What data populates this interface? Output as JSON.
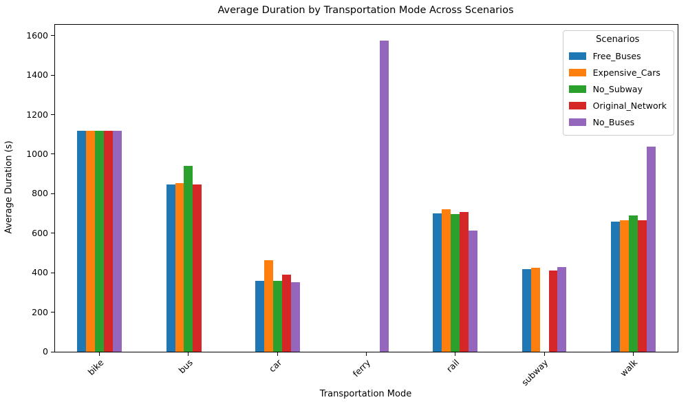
{
  "chart_data": {
    "type": "bar",
    "title": "Average Duration by Transportation Mode Across Scenarios",
    "xlabel": "Transportation Mode",
    "ylabel": "Average Duration (s)",
    "categories": [
      "bike",
      "bus",
      "car",
      "ferry",
      "rail",
      "subway",
      "walk"
    ],
    "series": [
      {
        "name": "Free_Buses",
        "color": "#1f77b4",
        "values": [
          1120,
          848,
          360,
          null,
          700,
          418,
          660
        ]
      },
      {
        "name": "Expensive_Cars",
        "color": "#ff7f0e",
        "values": [
          1120,
          855,
          462,
          null,
          722,
          424,
          665
        ]
      },
      {
        "name": "No_Subway",
        "color": "#2ca02c",
        "values": [
          1120,
          940,
          360,
          null,
          697,
          null,
          690
        ]
      },
      {
        "name": "Original_Network",
        "color": "#d62728",
        "values": [
          1120,
          848,
          392,
          null,
          706,
          412,
          665
        ]
      },
      {
        "name": "No_Buses",
        "color": "#9467bd",
        "values": [
          1120,
          null,
          352,
          1575,
          612,
          430,
          1038
        ]
      }
    ],
    "ylim": [
      0,
      1655
    ],
    "yticks": [
      0,
      200,
      400,
      600,
      800,
      1000,
      1200,
      1400,
      1600
    ],
    "x_tick_rotation": 45,
    "grid": false,
    "legend": {
      "title": "Scenarios",
      "position": "upper right"
    }
  }
}
